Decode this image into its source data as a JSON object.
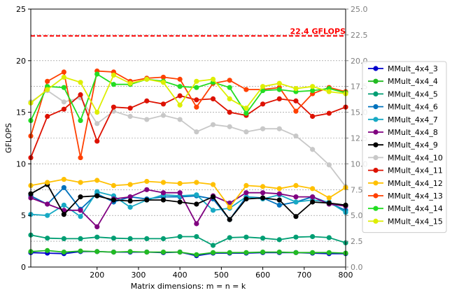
{
  "chart_data": {
    "type": "line",
    "xlabel": "Matrix dimensions: m = n = k",
    "ylabel": "GFLOPS",
    "xlim": [
      40,
      800
    ],
    "ylim": [
      0,
      25
    ],
    "xticks": [
      200,
      300,
      400,
      500,
      600,
      700,
      800
    ],
    "yticks": [
      0,
      5,
      10,
      15,
      20,
      25
    ],
    "right_yticks": [
      "0.0",
      "2.5",
      "5.0",
      "7.5",
      "10.0",
      "12.5",
      "15.0",
      "17.5",
      "20.0",
      "22.5",
      "25.0"
    ],
    "right_axis_color": "#808080",
    "grid": "horizontal dashed at right-axis ticks",
    "peak": {
      "value": 22.4,
      "label": "22.4 GFLOPS",
      "color": "#ff0000"
    },
    "legend_position": "right",
    "x": [
      40,
      80,
      120,
      160,
      200,
      240,
      280,
      320,
      360,
      400,
      440,
      480,
      520,
      560,
      600,
      640,
      680,
      720,
      760,
      800
    ],
    "series": [
      {
        "name": "MMult_4x4_3",
        "color": "#0000cc",
        "values": [
          1.4,
          1.35,
          1.3,
          1.5,
          1.5,
          1.45,
          1.45,
          1.45,
          1.4,
          1.45,
          1.1,
          1.35,
          1.35,
          1.35,
          1.4,
          1.4,
          1.4,
          1.35,
          1.3,
          1.3
        ]
      },
      {
        "name": "MMult_4x4_4",
        "color": "#22bb22",
        "values": [
          1.5,
          1.6,
          1.45,
          1.55,
          1.5,
          1.45,
          1.5,
          1.45,
          1.45,
          1.45,
          1.2,
          1.4,
          1.4,
          1.4,
          1.45,
          1.45,
          1.4,
          1.4,
          1.4,
          1.35
        ]
      },
      {
        "name": "MMult_4x4_5",
        "color": "#009e73",
        "values": [
          3.1,
          2.8,
          2.75,
          2.75,
          2.9,
          2.8,
          2.75,
          2.75,
          2.75,
          2.95,
          2.95,
          2.1,
          2.85,
          2.9,
          2.8,
          2.65,
          2.9,
          2.95,
          2.85,
          2.35
        ]
      },
      {
        "name": "MMult_4x4_6",
        "color": "#0072bd",
        "values": [
          6.9,
          6.1,
          7.7,
          5.6,
          7.1,
          6.3,
          6.8,
          6.6,
          6.8,
          6.8,
          6.9,
          6.6,
          4.6,
          6.8,
          6.7,
          6.0,
          6.3,
          6.8,
          6.2,
          5.5
        ]
      },
      {
        "name": "MMult_4x4_7",
        "color": "#17a9c4",
        "values": [
          5.1,
          5.0,
          6.0,
          4.9,
          7.3,
          6.9,
          5.8,
          6.5,
          7.0,
          6.9,
          7.0,
          5.5,
          5.7,
          6.8,
          6.6,
          7.0,
          6.3,
          6.5,
          6.3,
          5.3
        ]
      },
      {
        "name": "MMult_4x4_8",
        "color": "#800080",
        "values": [
          6.7,
          6.1,
          5.5,
          5.5,
          3.9,
          6.6,
          6.8,
          7.5,
          7.2,
          7.2,
          4.2,
          6.9,
          6.2,
          7.2,
          7.2,
          7.1,
          6.8,
          6.8,
          6.1,
          5.9
        ]
      },
      {
        "name": "MMult_4x4_9",
        "color": "#000000",
        "values": [
          7.1,
          8.0,
          5.1,
          6.8,
          6.9,
          6.5,
          6.4,
          6.5,
          6.5,
          6.3,
          6.1,
          6.8,
          4.6,
          6.6,
          6.7,
          6.5,
          4.9,
          6.3,
          6.2,
          6.0
        ]
      },
      {
        "name": "MMult_4x4_10",
        "color": "#c8c8c8",
        "values": [
          16.0,
          17.1,
          16.0,
          16.4,
          13.9,
          15.1,
          14.6,
          14.3,
          14.7,
          14.3,
          13.1,
          13.8,
          13.6,
          13.1,
          13.4,
          13.4,
          12.7,
          11.4,
          9.9,
          7.8
        ]
      },
      {
        "name": "MMult_4x4_11",
        "color": "#dd1100",
        "values": [
          10.6,
          14.6,
          15.3,
          16.7,
          12.2,
          15.5,
          15.4,
          16.1,
          15.8,
          16.6,
          16.2,
          16.3,
          15.0,
          14.7,
          15.8,
          16.3,
          16.1,
          14.6,
          14.9,
          15.5
        ]
      },
      {
        "name": "MMult_4x4_12",
        "color": "#ffc000",
        "values": [
          7.9,
          8.2,
          8.5,
          8.2,
          8.4,
          7.9,
          8.0,
          8.3,
          8.2,
          8.1,
          8.2,
          8.0,
          5.8,
          7.9,
          7.8,
          7.6,
          7.9,
          7.6,
          6.7,
          7.7
        ]
      },
      {
        "name": "MMult_4x4_13",
        "color": "#ff4000",
        "values": [
          12.7,
          18.0,
          18.9,
          10.6,
          19.0,
          18.9,
          18.0,
          18.3,
          18.4,
          18.2,
          15.5,
          17.8,
          18.1,
          17.2,
          17.2,
          17.4,
          15.1,
          16.8,
          17.4,
          17.0
        ]
      },
      {
        "name": "MMult_4x4_14",
        "color": "#22dd22",
        "values": [
          14.2,
          17.5,
          17.4,
          14.2,
          18.7,
          17.7,
          17.7,
          18.2,
          18.0,
          17.5,
          17.4,
          17.9,
          17.4,
          14.9,
          17.1,
          17.2,
          17.0,
          17.1,
          17.3,
          16.9
        ]
      },
      {
        "name": "MMult_4x4_15",
        "color": "#ddee00",
        "values": [
          15.9,
          17.2,
          18.4,
          17.9,
          15.0,
          18.6,
          17.8,
          18.2,
          17.9,
          15.7,
          18.0,
          18.2,
          16.3,
          15.4,
          17.5,
          17.8,
          17.3,
          17.5,
          17.0,
          16.8
        ]
      }
    ]
  }
}
